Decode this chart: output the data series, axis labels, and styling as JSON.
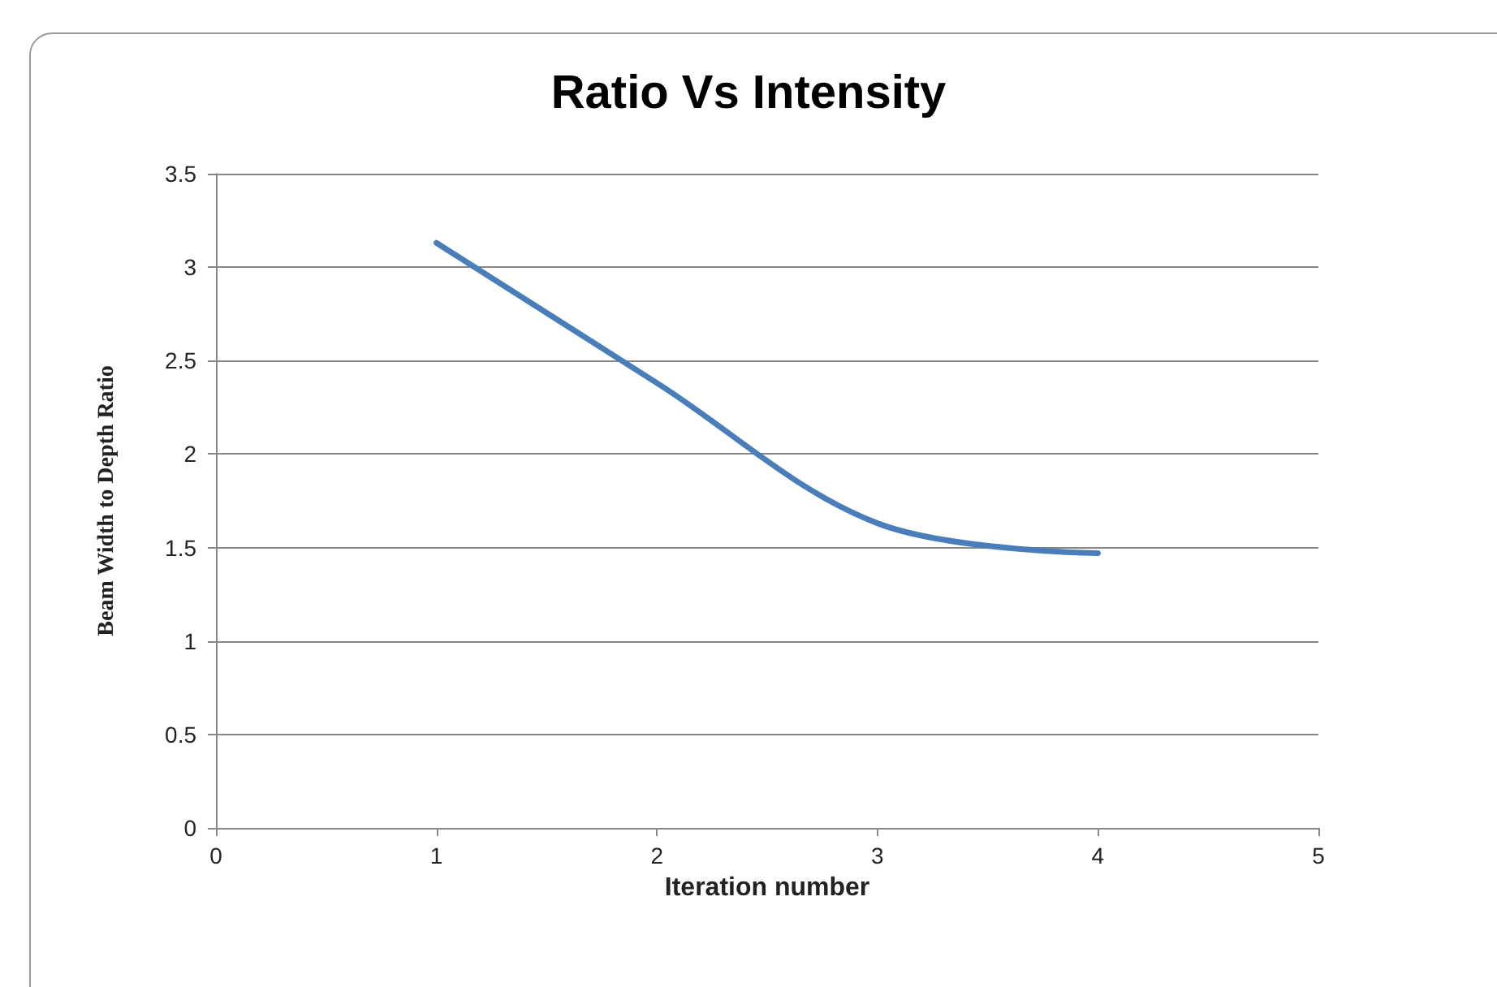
{
  "chart_data": {
    "type": "line",
    "title": "Ratio Vs Intensity",
    "xlabel": "Iteration number",
    "ylabel": "Beam Width to Depth Ratio",
    "x": [
      1,
      2,
      3,
      4
    ],
    "series": [
      {
        "color": "#4a7ebb",
        "values": [
          3.13,
          2.38,
          1.63,
          1.47
        ]
      }
    ],
    "xlim": [
      0,
      5
    ],
    "xticks": [
      0,
      1,
      2,
      3,
      4,
      5
    ],
    "ylim": [
      0,
      3.5
    ],
    "yticks": [
      0,
      0.5,
      1,
      1.5,
      2,
      2.5,
      3,
      3.5
    ],
    "grid": "y",
    "marker": "none",
    "line_style": "solid"
  }
}
